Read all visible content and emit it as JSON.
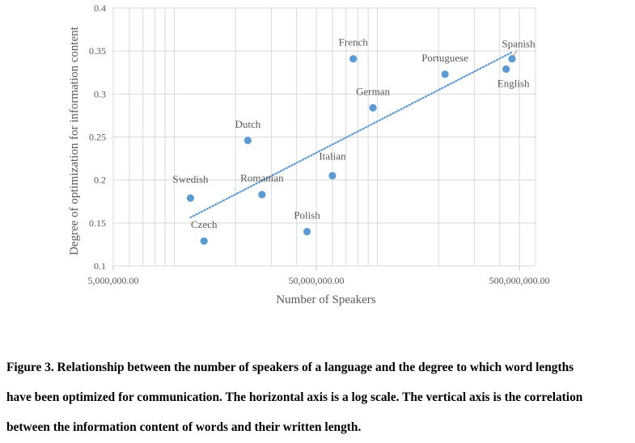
{
  "chart_data": {
    "type": "scatter",
    "xlabel": "Number of Speakers",
    "ylabel": "Degree of optimization for information content",
    "x_scale": "log",
    "xlim": [
      5000000,
      600000000
    ],
    "ylim": [
      0.1,
      0.4
    ],
    "x_ticks": [
      {
        "value": 5000000,
        "label": "5,000,000.00"
      },
      {
        "value": 50000000,
        "label": "50,000,000.00"
      },
      {
        "value": 500000000,
        "label": "500,000,000.00"
      }
    ],
    "y_ticks": [
      {
        "value": 0.1,
        "label": "0.1"
      },
      {
        "value": 0.15,
        "label": "0.15"
      },
      {
        "value": 0.2,
        "label": "0.2"
      },
      {
        "value": 0.25,
        "label": "0.25"
      },
      {
        "value": 0.3,
        "label": "0.3"
      },
      {
        "value": 0.35,
        "label": "0.35"
      },
      {
        "value": 0.4,
        "label": "0.4"
      }
    ],
    "grid": true,
    "trendline": {
      "style": "dotted",
      "x_range": [
        12000000,
        460000000
      ]
    },
    "point_color": "#5B9BD5",
    "points": [
      {
        "label": "Swedish",
        "x": 12000000,
        "y": 0.179
      },
      {
        "label": "Czech",
        "x": 14000000,
        "y": 0.129
      },
      {
        "label": "Dutch",
        "x": 23000000,
        "y": 0.246
      },
      {
        "label": "Romanian",
        "x": 27000000,
        "y": 0.183
      },
      {
        "label": "Polish",
        "x": 45000000,
        "y": 0.14
      },
      {
        "label": "Italian",
        "x": 60000000,
        "y": 0.205
      },
      {
        "label": "French",
        "x": 76000000,
        "y": 0.341
      },
      {
        "label": "German",
        "x": 95000000,
        "y": 0.284
      },
      {
        "label": "Portuguese",
        "x": 215000000,
        "y": 0.323
      },
      {
        "label": "English",
        "x": 430000000,
        "y": 0.329
      },
      {
        "label": "Spanish",
        "x": 460000000,
        "y": 0.341
      }
    ]
  },
  "caption": {
    "lines": [
      "Figure 3. Relationship between the number of speakers of a language and the degree to which word lengths",
      "have been optimized for communication. The horizontal axis is a log scale. The vertical axis is the correlation",
      "between the information content of words and their written length."
    ]
  }
}
